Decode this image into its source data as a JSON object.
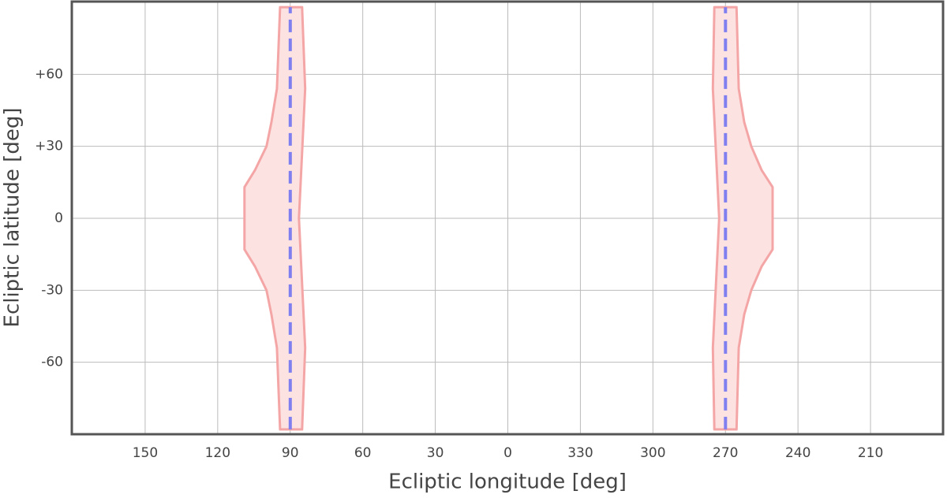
{
  "chart_data": {
    "type": "region",
    "x_label": "Ecliptic longitude [deg]",
    "y_label": "Ecliptic latitude [deg]",
    "xlim": [
      180,
      -180
    ],
    "xticks": [
      150,
      120,
      90,
      60,
      30,
      0,
      {
        "value": -30,
        "label": "330"
      },
      {
        "value": -60,
        "label": "300"
      },
      {
        "value": -90,
        "label": "270"
      },
      {
        "value": -120,
        "label": "240"
      },
      {
        "value": -150,
        "label": "210"
      }
    ],
    "ylim": [
      -90,
      90
    ],
    "yticks": [
      {
        "value": 60,
        "label": "+60"
      },
      {
        "value": 30,
        "label": "+30"
      },
      0,
      -30,
      -60
    ],
    "grid": true,
    "regions": [
      {
        "color": "#f4a6a6",
        "fill": "#fde2e2",
        "lon": [
          94.2,
          85.1,
          83.8,
          86.4,
          83.8,
          85.1,
          94.2,
          95.5,
          97.8,
          99.8,
          104.6,
          108.9,
          108.9,
          104.6,
          99.8,
          97.8,
          95.5
        ],
        "lat": [
          88,
          88,
          54,
          0,
          -54,
          -88,
          -88,
          -54,
          -40,
          -30,
          -20,
          -13,
          13,
          20,
          30,
          40,
          54
        ]
      },
      {
        "color": "#f4a6a6",
        "fill": "#fde2e2",
        "lon": [
          -85.4,
          -94.6,
          -95.5,
          -97.8,
          -100.7,
          -105,
          -109.5,
          -109.5,
          -105,
          -100.7,
          -97.8,
          -95.5,
          -94.6,
          -85.4,
          -84.8,
          -87.4,
          -84.8
        ],
        "lat": [
          88,
          88,
          54,
          40,
          30,
          20,
          13,
          -13,
          -20,
          -30,
          -40,
          -54,
          -88,
          -88,
          -54,
          0,
          54
        ]
      }
    ],
    "lines": [
      {
        "color": "#7f7ff0",
        "lon": [
          90,
          90
        ],
        "lat": [
          -88,
          88
        ]
      },
      {
        "color": "#7f7ff0",
        "lon": [
          -90,
          -90
        ],
        "lat": [
          -88,
          88
        ]
      }
    ]
  }
}
